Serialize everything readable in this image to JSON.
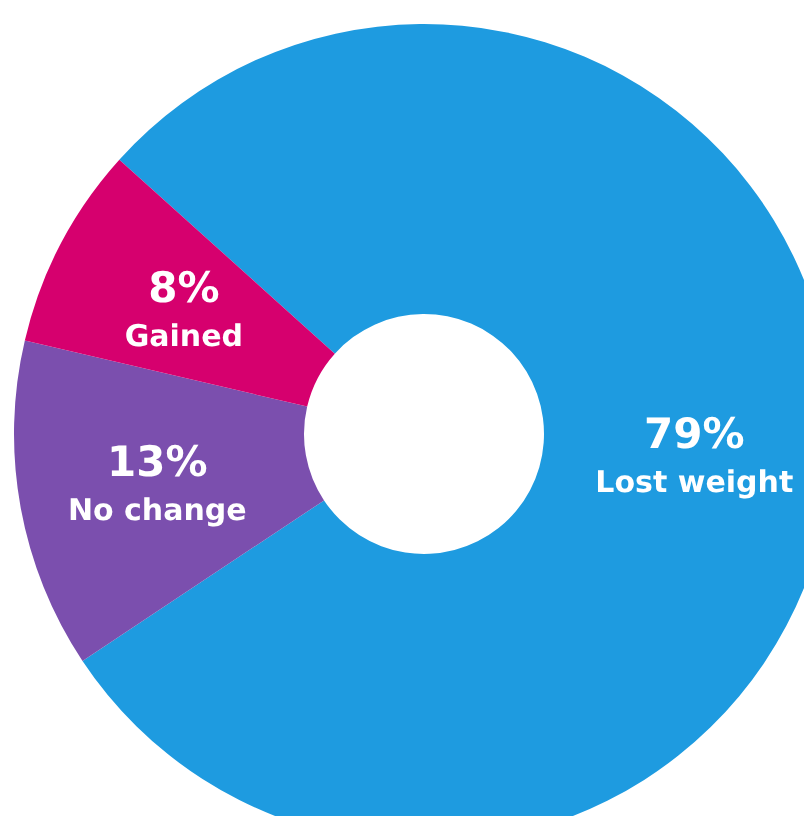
{
  "chart_data": {
    "type": "donut",
    "categories": [
      "Lost weight",
      "No change",
      "Gained"
    ],
    "values": [
      79,
      13,
      8
    ],
    "colors": [
      "#1e9be0",
      "#7b4fae",
      "#d6006e"
    ],
    "value_labels": [
      "79%",
      "13%",
      "8%"
    ],
    "legend": false
  }
}
